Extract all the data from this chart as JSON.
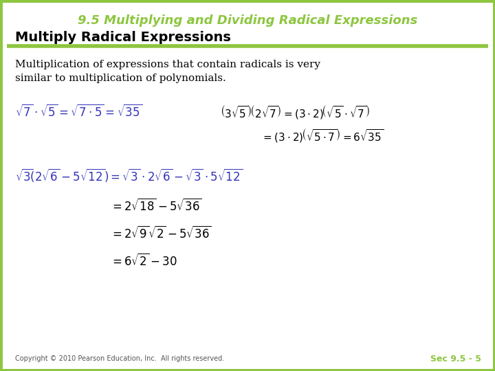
{
  "bg_color": "#ffffff",
  "border_color": "#8dc63f",
  "border_width": 5,
  "title": "9.5 Multiplying and Dividing Radical Expressions",
  "title_color": "#8dc63f",
  "title_fontsize": 13,
  "subtitle": "Multiply Radical Expressions",
  "subtitle_color": "#000000",
  "subtitle_fontsize": 14,
  "rule_color": "#8dc63f",
  "body_text": "Multiplication of expressions that contain radicals is very\nsimilar to multiplication of polynomials.",
  "body_fontsize": 11,
  "math_color_blue": "#3333bb",
  "math_color_black": "#000000",
  "math_fontsize": 12,
  "math_fontsize_sm": 11,
  "footer_text": "Copyright © 2010 Pearson Education, Inc.  All rights reserved.",
  "footer_right": "Sec 9.5 - 5",
  "footer_color_left": "#555555",
  "footer_color_right": "#8dc63f",
  "footer_fontsize": 7
}
